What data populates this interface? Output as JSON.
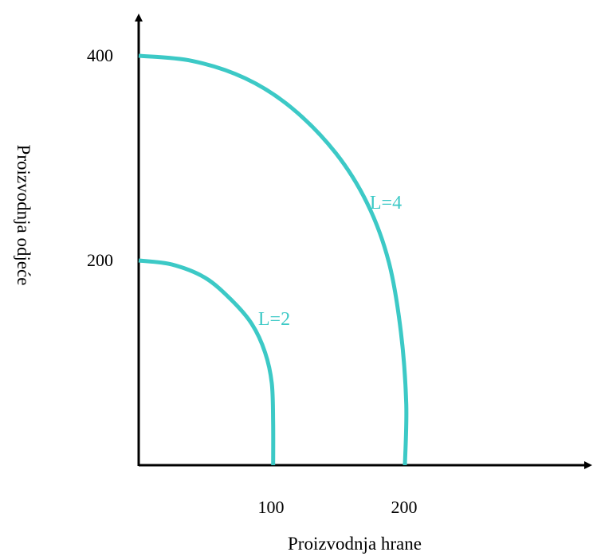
{
  "chart_data": {
    "type": "line",
    "title": "",
    "xlabel": "Proizvodnja hrane",
    "ylabel": "Proizvodnja odjeće",
    "xlim": [
      0,
      340
    ],
    "ylim": [
      0,
      440
    ],
    "x_ticks": [
      {
        "value": 100,
        "label": "100"
      },
      {
        "value": 200,
        "label": "200"
      }
    ],
    "y_ticks": [
      {
        "value": 200,
        "label": "200"
      },
      {
        "value": 400,
        "label": "400"
      }
    ],
    "grid": false,
    "legend": "none",
    "series": [
      {
        "name": "L=2",
        "color": "#3cc9c6",
        "points": [
          [
            0,
            200
          ],
          [
            25,
            196
          ],
          [
            50,
            183
          ],
          [
            70,
            161
          ],
          [
            85,
            138
          ],
          [
            95,
            110
          ],
          [
            100,
            80
          ],
          [
            101,
            40
          ],
          [
            101,
            0
          ]
        ]
      },
      {
        "name": "L=4",
        "color": "#3cc9c6",
        "points": [
          [
            0,
            400
          ],
          [
            40,
            395
          ],
          [
            80,
            378
          ],
          [
            115,
            349
          ],
          [
            148,
            305
          ],
          [
            172,
            255
          ],
          [
            188,
            198
          ],
          [
            197,
            130
          ],
          [
            201,
            60
          ],
          [
            200,
            0
          ]
        ]
      }
    ]
  }
}
